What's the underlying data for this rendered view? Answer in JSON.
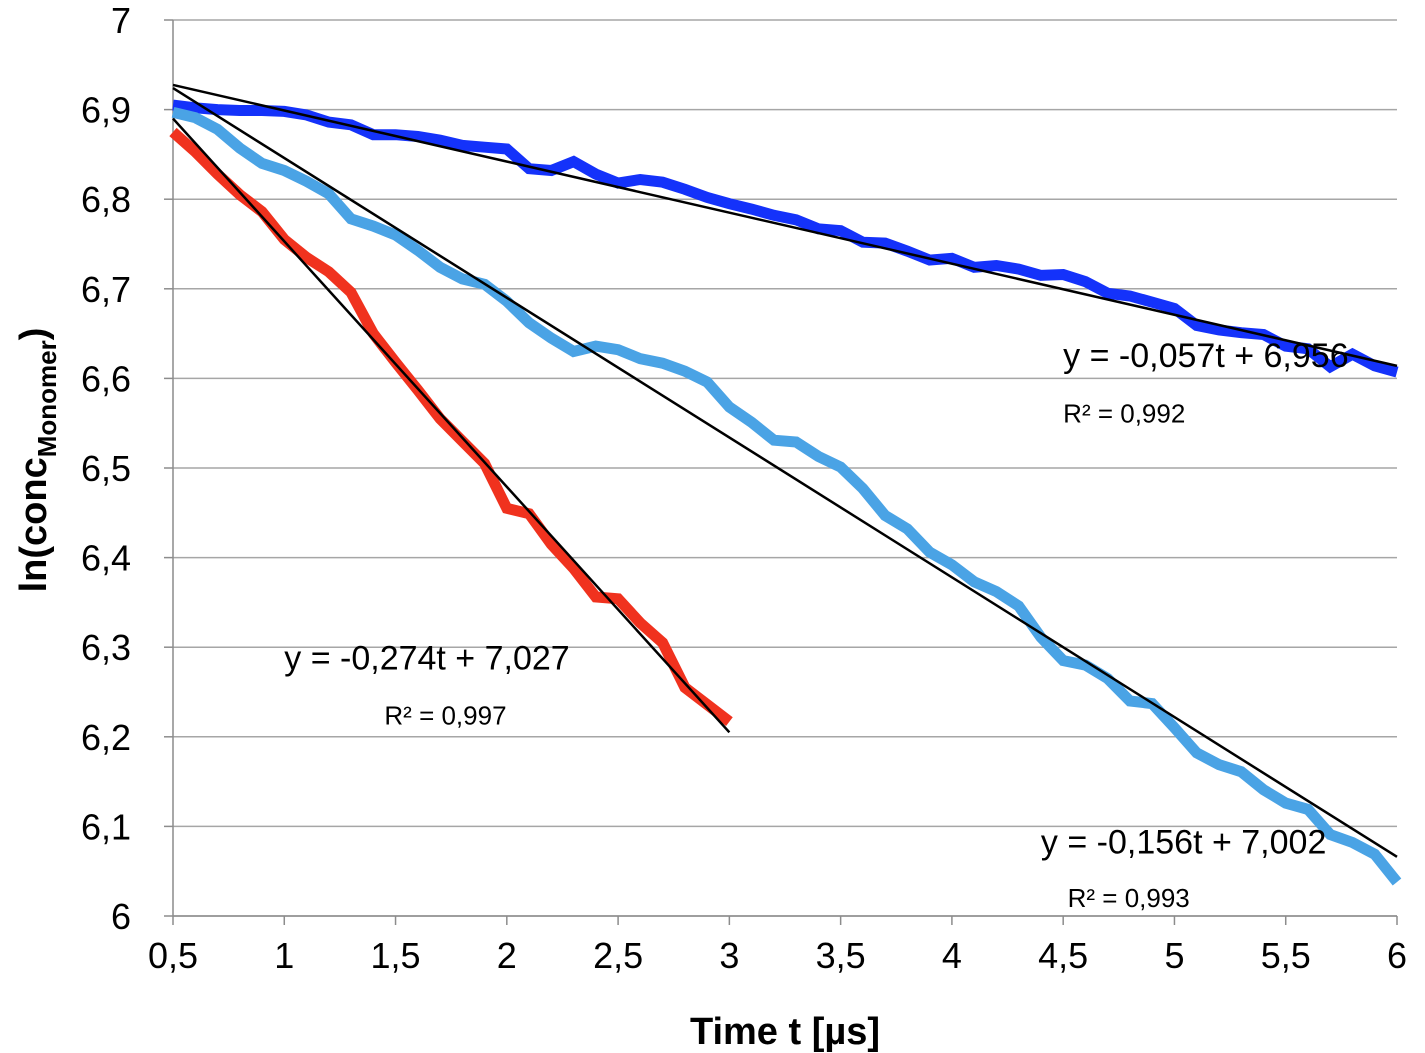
{
  "chart_data": {
    "type": "line",
    "title": "",
    "xlabel": "Time t [µs]",
    "ylabel": {
      "prefix": "ln(conc",
      "subscript": "Monomer",
      "suffix": ")"
    },
    "xlim": [
      0.5,
      6
    ],
    "ylim": [
      6,
      7
    ],
    "x_ticks": [
      "0,5",
      "1",
      "1,5",
      "2",
      "2,5",
      "3",
      "3,5",
      "4",
      "4,5",
      "5",
      "5,5",
      "6"
    ],
    "y_ticks": [
      "6",
      "6,1",
      "6,2",
      "6,3",
      "6,4",
      "6,5",
      "6,6",
      "6,7",
      "6,8",
      "6,9",
      "7"
    ],
    "grid": true,
    "legend": "none",
    "series": [
      {
        "color": "#1432FA",
        "x": [
          0.5,
          0.6,
          0.7,
          0.8,
          0.9,
          1.0,
          1.1,
          1.2,
          1.3,
          1.4,
          1.5,
          1.6,
          1.7,
          1.8,
          1.9,
          2.0,
          2.1,
          2.2,
          2.3,
          2.4,
          2.5,
          2.6,
          2.7,
          2.8,
          2.9,
          3.0,
          3.1,
          3.2,
          3.3,
          3.4,
          3.5,
          3.6,
          3.7,
          3.8,
          3.9,
          4.0,
          4.1,
          4.2,
          4.3,
          4.4,
          4.5,
          4.6,
          4.7,
          4.8,
          4.9,
          5.0,
          5.1,
          5.2,
          5.3,
          5.4,
          5.5,
          5.6,
          5.7,
          5.8,
          5.9,
          6.0
        ],
        "y": [
          6.905,
          6.902,
          6.9,
          6.899,
          6.899,
          6.898,
          6.894,
          6.886,
          6.883,
          6.872,
          6.872,
          6.87,
          6.866,
          6.86,
          6.858,
          6.856,
          6.834,
          6.832,
          6.842,
          6.828,
          6.818,
          6.822,
          6.819,
          6.811,
          6.802,
          6.795,
          6.789,
          6.782,
          6.777,
          6.767,
          6.765,
          6.752,
          6.751,
          6.742,
          6.732,
          6.734,
          6.724,
          6.726,
          6.722,
          6.715,
          6.716,
          6.708,
          6.695,
          6.692,
          6.685,
          6.678,
          6.659,
          6.654,
          6.651,
          6.649,
          6.636,
          6.633,
          6.613,
          6.627,
          6.614,
          6.607
        ]
      },
      {
        "color": "#4AA3E5",
        "x": [
          0.5,
          0.6,
          0.7,
          0.8,
          0.9,
          1.0,
          1.1,
          1.2,
          1.3,
          1.4,
          1.5,
          1.6,
          1.7,
          1.8,
          1.9,
          2.0,
          2.1,
          2.2,
          2.3,
          2.4,
          2.5,
          2.6,
          2.7,
          2.8,
          2.9,
          3.0,
          3.1,
          3.2,
          3.3,
          3.4,
          3.5,
          3.6,
          3.7,
          3.8,
          3.9,
          4.0,
          4.1,
          4.2,
          4.3,
          4.4,
          4.5,
          4.6,
          4.7,
          4.8,
          4.9,
          5.0,
          5.1,
          5.2,
          5.3,
          5.4,
          5.5,
          5.6,
          5.7,
          5.8,
          5.9,
          6.0
        ],
        "y": [
          6.897,
          6.891,
          6.878,
          6.857,
          6.84,
          6.832,
          6.82,
          6.806,
          6.778,
          6.77,
          6.76,
          6.743,
          6.724,
          6.711,
          6.705,
          6.686,
          6.662,
          6.645,
          6.63,
          6.636,
          6.632,
          6.622,
          6.617,
          6.608,
          6.596,
          6.568,
          6.551,
          6.531,
          6.529,
          6.513,
          6.501,
          6.477,
          6.447,
          6.432,
          6.406,
          6.392,
          6.373,
          6.362,
          6.346,
          6.311,
          6.285,
          6.28,
          6.265,
          6.24,
          6.237,
          6.21,
          6.182,
          6.169,
          6.161,
          6.141,
          6.126,
          6.119,
          6.091,
          6.082,
          6.069,
          6.038
        ]
      },
      {
        "color": "#F0321E",
        "x": [
          0.5,
          0.6,
          0.7,
          0.8,
          0.9,
          1.0,
          1.1,
          1.2,
          1.3,
          1.4,
          1.5,
          1.6,
          1.7,
          1.8,
          1.9,
          2.0,
          2.1,
          2.2,
          2.3,
          2.4,
          2.5,
          2.6,
          2.7,
          2.8,
          2.9,
          3.0
        ],
        "y": [
          6.875,
          6.853,
          6.828,
          6.805,
          6.786,
          6.755,
          6.735,
          6.719,
          6.696,
          6.65,
          6.618,
          6.587,
          6.555,
          6.53,
          6.505,
          6.455,
          6.449,
          6.415,
          6.388,
          6.356,
          6.354,
          6.327,
          6.305,
          6.255,
          6.236,
          6.217
        ]
      }
    ],
    "trendlines": [
      {
        "slope": -0.057,
        "intercept": 6.956,
        "x_range": [
          0.5,
          6
        ],
        "equation": "y = -0,057t + 6,956",
        "r2": "R² = 0,992",
        "eq_anchor": [
          4.5,
          6.613
        ],
        "r2_anchor": [
          4.5,
          6.551
        ]
      },
      {
        "slope": -0.156,
        "intercept": 7.002,
        "x_range": [
          0.5,
          6
        ],
        "equation": "y = -0,156t + 7,002",
        "r2": "R² = 0,993",
        "eq_anchor": [
          4.4,
          6.07
        ],
        "r2_anchor": [
          4.52,
          6.01
        ]
      },
      {
        "slope": -0.274,
        "intercept": 7.027,
        "x_range": [
          0.5,
          3
        ],
        "equation": "y = -0,274t + 7,027",
        "r2": "R² = 0,997",
        "eq_anchor": [
          1.0,
          6.275
        ],
        "r2_anchor": [
          1.45,
          6.214
        ]
      }
    ]
  }
}
